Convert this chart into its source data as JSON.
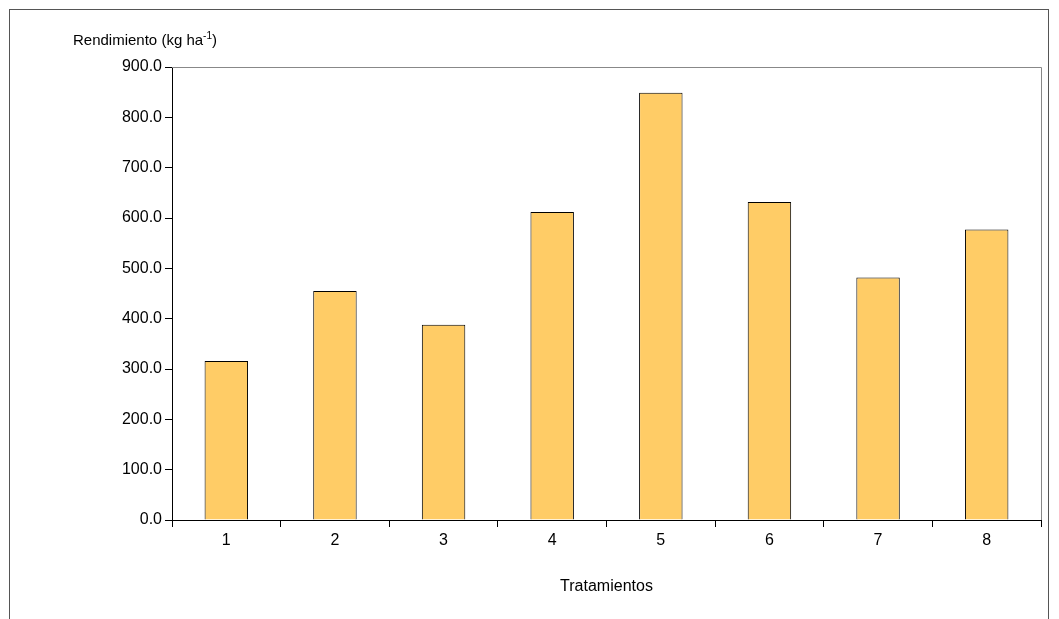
{
  "chart_data": {
    "type": "bar",
    "xlabel": "Tratamientos",
    "ylabel": "Rendimiento  (kg ha$^{-1}$)",
    "categories": [
      "1",
      "2",
      "3",
      "4",
      "5",
      "6",
      "7",
      "8"
    ],
    "values": [
      316,
      455,
      388,
      612,
      849,
      632,
      482,
      577
    ],
    "color": "#ffcc66",
    "ylim": [
      0,
      900
    ],
    "yticks": [
      {
        "value": 0,
        "label": "0.0"
      },
      {
        "value": 100,
        "label": "100.0"
      },
      {
        "value": 200,
        "label": "200.0"
      },
      {
        "value": 300,
        "label": "300.0"
      },
      {
        "value": 400,
        "label": "400.0"
      },
      {
        "value": 500,
        "label": "500.0"
      },
      {
        "value": 600,
        "label": "600.0"
      },
      {
        "value": 700,
        "label": "700.0"
      },
      {
        "value": 800,
        "label": "800.0"
      },
      {
        "value": 900,
        "label": "900.0"
      }
    ],
    "grid": false,
    "legend": false
  }
}
